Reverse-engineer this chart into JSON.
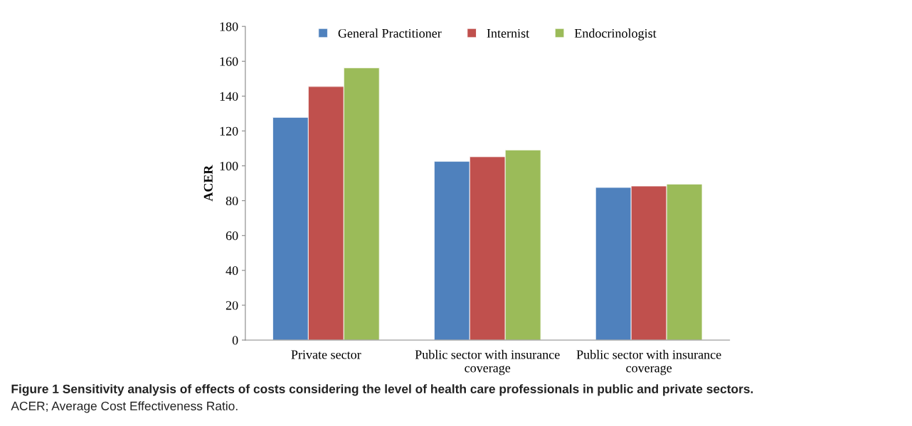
{
  "chart_data": {
    "type": "bar",
    "ylabel": "ACER",
    "categories": [
      "Private sector",
      "Public sector with insurance\ncoverage",
      "Public sector with insurance\ncoverage"
    ],
    "series": [
      {
        "name": "General Practitioner",
        "color": "#4f81bd",
        "values": [
          127.8,
          102.6,
          87.6
        ]
      },
      {
        "name": "Internist",
        "color": "#c0504d",
        "values": [
          145.5,
          105.2,
          88.4
        ]
      },
      {
        "name": "Endocrinologist",
        "color": "#9bbb59",
        "values": [
          156.2,
          109.1,
          89.5
        ]
      }
    ],
    "ylim": [
      0,
      180
    ],
    "yticks": [
      0,
      20,
      40,
      60,
      80,
      100,
      120,
      140,
      160,
      180
    ],
    "grid": false,
    "legend": "top",
    "annotations": [
      "Figure 1 Sensitivity analysis of effects of costs considering the level of health care professionals in public and private sectors.",
      "ACER; Average Cost Effectiveness Ratio."
    ]
  }
}
